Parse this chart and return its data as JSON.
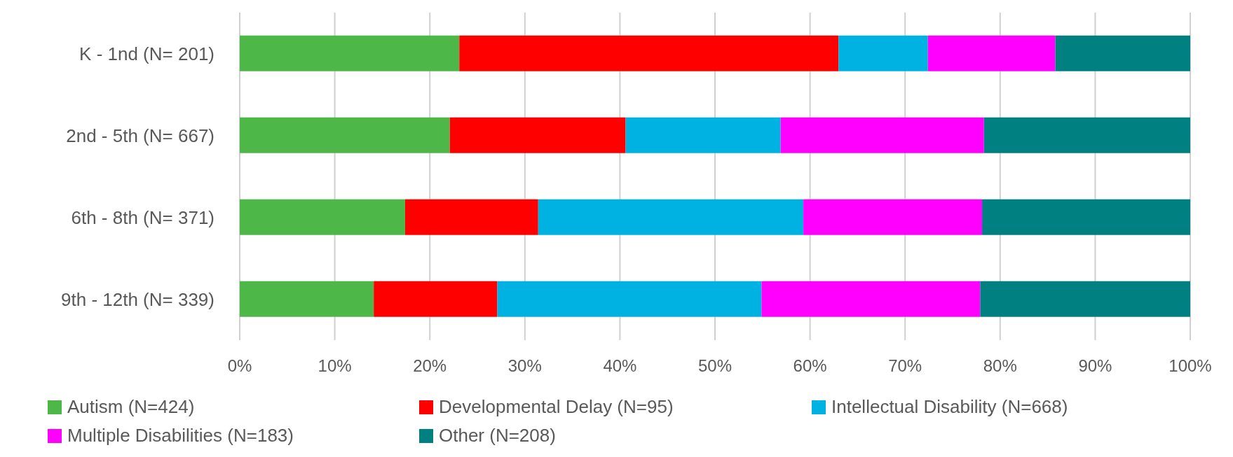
{
  "chart_data": {
    "type": "bar",
    "orientation": "horizontal",
    "stacked": true,
    "categories": [
      "K - 1nd (N= 201)",
      "2nd - 5th (N= 667)",
      "6th - 8th (N= 371)",
      "9th - 12th (N= 339)"
    ],
    "series": [
      {
        "name": "Autism (N=424)",
        "color": "#4db748",
        "values": [
          23.1,
          22.1,
          17.4,
          14.1
        ]
      },
      {
        "name": "Developmental Delay (N=95)",
        "color": "#ff0000",
        "values": [
          39.9,
          18.5,
          14.0,
          13.0
        ]
      },
      {
        "name": "Intellectual Disability (N=668)",
        "color": "#00b2e2",
        "values": [
          9.4,
          16.3,
          27.9,
          27.8
        ]
      },
      {
        "name": "Multiple Disabilities (N=183)",
        "color": "#ff00ff",
        "values": [
          13.4,
          21.4,
          18.8,
          23.0
        ]
      },
      {
        "name": "Other (N=208)",
        "color": "#008080",
        "values": [
          14.2,
          21.7,
          21.9,
          22.1
        ]
      }
    ],
    "xlim": [
      0,
      100
    ],
    "xticks": [
      {
        "value": 0,
        "label": "0%"
      },
      {
        "value": 10,
        "label": "10%"
      },
      {
        "value": 20,
        "label": "20%"
      },
      {
        "value": 30,
        "label": "30%"
      },
      {
        "value": 40,
        "label": "40%"
      },
      {
        "value": 50,
        "label": "50%"
      },
      {
        "value": 60,
        "label": "60%"
      },
      {
        "value": 70,
        "label": "70%"
      },
      {
        "value": 80,
        "label": "80%"
      },
      {
        "value": 90,
        "label": "90%"
      },
      {
        "value": 100,
        "label": "100%"
      }
    ],
    "grid": "x",
    "legend": "bottom"
  }
}
